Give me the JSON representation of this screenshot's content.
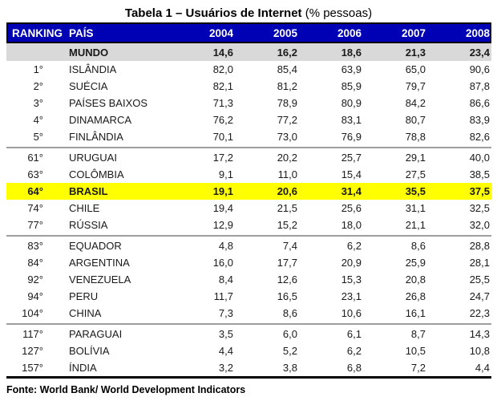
{
  "title": {
    "bold": "Tabela 1 – Usuários de Internet",
    "normal": " (% pessoas)"
  },
  "table": {
    "columns": [
      "RANKING",
      "PAÍS",
      "2004",
      "2005",
      "2006",
      "2007",
      "2008"
    ],
    "rows": [
      {
        "ranking": "",
        "country": "MUNDO",
        "values": [
          "14,6",
          "16,2",
          "18,6",
          "21,3",
          "23,4"
        ],
        "style": "world",
        "separator_before": false
      },
      {
        "ranking": "1°",
        "country": "ISLÂNDIA",
        "values": [
          "82,0",
          "85,4",
          "63,9",
          "65,0",
          "90,6"
        ],
        "style": "",
        "separator_before": false
      },
      {
        "ranking": "2°",
        "country": "SUÉCIA",
        "values": [
          "82,1",
          "81,2",
          "85,9",
          "79,7",
          "87,8"
        ],
        "style": "",
        "separator_before": false
      },
      {
        "ranking": "3°",
        "country": "PAÍSES BAIXOS",
        "values": [
          "71,3",
          "78,9",
          "80,9",
          "84,2",
          "86,6"
        ],
        "style": "",
        "separator_before": false
      },
      {
        "ranking": "4°",
        "country": "DINAMARCA",
        "values": [
          "76,2",
          "77,2",
          "83,1",
          "80,7",
          "83,9"
        ],
        "style": "",
        "separator_before": false
      },
      {
        "ranking": "5°",
        "country": "FINLÂNDIA",
        "values": [
          "70,1",
          "73,0",
          "76,9",
          "78,8",
          "82,6"
        ],
        "style": "",
        "separator_before": false
      },
      {
        "ranking": "61°",
        "country": "URUGUAI",
        "values": [
          "17,2",
          "20,2",
          "25,7",
          "29,1",
          "40,0"
        ],
        "style": "",
        "separator_before": true
      },
      {
        "ranking": "63°",
        "country": "COLÔMBIA",
        "values": [
          "9,1",
          "11,0",
          "15,4",
          "27,5",
          "38,5"
        ],
        "style": "",
        "separator_before": false
      },
      {
        "ranking": "64°",
        "country": "BRASIL",
        "values": [
          "19,1",
          "20,6",
          "31,4",
          "35,5",
          "37,5"
        ],
        "style": "highlight",
        "separator_before": false
      },
      {
        "ranking": "74°",
        "country": "CHILE",
        "values": [
          "19,4",
          "21,5",
          "25,6",
          "31,1",
          "32,5"
        ],
        "style": "",
        "separator_before": false
      },
      {
        "ranking": "77°",
        "country": "RÚSSIA",
        "values": [
          "12,9",
          "15,2",
          "18,0",
          "21,1",
          "32,0"
        ],
        "style": "",
        "separator_before": false
      },
      {
        "ranking": "83°",
        "country": "EQUADOR",
        "values": [
          "4,8",
          "7,4",
          "6,2",
          "8,6",
          "28,8"
        ],
        "style": "",
        "separator_before": true
      },
      {
        "ranking": "84°",
        "country": "ARGENTINA",
        "values": [
          "16,0",
          "17,7",
          "20,9",
          "25,9",
          "28,1"
        ],
        "style": "",
        "separator_before": false
      },
      {
        "ranking": "92°",
        "country": "VENEZUELA",
        "values": [
          "8,4",
          "12,6",
          "15,3",
          "20,8",
          "25,5"
        ],
        "style": "",
        "separator_before": false
      },
      {
        "ranking": "94°",
        "country": "PERU",
        "values": [
          "11,7",
          "16,5",
          "23,1",
          "26,8",
          "24,7"
        ],
        "style": "",
        "separator_before": false
      },
      {
        "ranking": "104°",
        "country": "CHINA",
        "values": [
          "7,3",
          "8,6",
          "10,6",
          "16,1",
          "22,3"
        ],
        "style": "",
        "separator_before": false
      },
      {
        "ranking": "117°",
        "country": "PARAGUAI",
        "values": [
          "3,5",
          "6,0",
          "6,1",
          "8,7",
          "14,3"
        ],
        "style": "",
        "separator_before": true
      },
      {
        "ranking": "127°",
        "country": "BOLÍVIA",
        "values": [
          "4,4",
          "5,2",
          "6,2",
          "10,5",
          "10,8"
        ],
        "style": "",
        "separator_before": false
      },
      {
        "ranking": "157°",
        "country": "ÍNDIA",
        "values": [
          "3,2",
          "3,8",
          "6,8",
          "7,2",
          "4,4"
        ],
        "style": "",
        "separator_before": false
      }
    ]
  },
  "footer": {
    "source": "Fonte: World Bank/ World Development Indicators"
  },
  "colors": {
    "header_bg": "#0000B4",
    "header_text": "#FFFFFF",
    "world_row_bg": "#D9D9D9",
    "highlight_row_bg": "#FFFF00",
    "separator_line": "#9E9E9E",
    "border": "#000000",
    "text": "#1A1A1A"
  },
  "chart_data": {
    "type": "table",
    "title": "Tabela 1 – Usuários de Internet (% pessoas)",
    "columns": [
      "RANKING",
      "PAÍS",
      "2004",
      "2005",
      "2006",
      "2007",
      "2008"
    ],
    "rows": [
      [
        "",
        "MUNDO",
        14.6,
        16.2,
        18.6,
        21.3,
        23.4
      ],
      [
        "1°",
        "ISLÂNDIA",
        82.0,
        85.4,
        63.9,
        65.0,
        90.6
      ],
      [
        "2°",
        "SUÉCIA",
        82.1,
        81.2,
        85.9,
        79.7,
        87.8
      ],
      [
        "3°",
        "PAÍSES BAIXOS",
        71.3,
        78.9,
        80.9,
        84.2,
        86.6
      ],
      [
        "4°",
        "DINAMARCA",
        76.2,
        77.2,
        83.1,
        80.7,
        83.9
      ],
      [
        "5°",
        "FINLÂNDIA",
        70.1,
        73.0,
        76.9,
        78.8,
        82.6
      ],
      [
        "61°",
        "URUGUAI",
        17.2,
        20.2,
        25.7,
        29.1,
        40.0
      ],
      [
        "63°",
        "COLÔMBIA",
        9.1,
        11.0,
        15.4,
        27.5,
        38.5
      ],
      [
        "64°",
        "BRASIL",
        19.1,
        20.6,
        31.4,
        35.5,
        37.5
      ],
      [
        "74°",
        "CHILE",
        19.4,
        21.5,
        25.6,
        31.1,
        32.5
      ],
      [
        "77°",
        "RÚSSIA",
        12.9,
        15.2,
        18.0,
        21.1,
        32.0
      ],
      [
        "83°",
        "EQUADOR",
        4.8,
        7.4,
        6.2,
        8.6,
        28.8
      ],
      [
        "84°",
        "ARGENTINA",
        16.0,
        17.7,
        20.9,
        25.9,
        28.1
      ],
      [
        "92°",
        "VENEZUELA",
        8.4,
        12.6,
        15.3,
        20.8,
        25.5
      ],
      [
        "94°",
        "PERU",
        11.7,
        16.5,
        23.1,
        26.8,
        24.7
      ],
      [
        "104°",
        "CHINA",
        7.3,
        8.6,
        10.6,
        16.1,
        22.3
      ],
      [
        "117°",
        "PARAGUAI",
        3.5,
        6.0,
        6.1,
        8.7,
        14.3
      ],
      [
        "127°",
        "BOLÍVIA",
        4.4,
        5.2,
        6.2,
        10.5,
        10.8
      ],
      [
        "157°",
        "ÍNDIA",
        3.2,
        3.8,
        6.8,
        7.2,
        4.4
      ]
    ],
    "highlighted_row": "BRASIL",
    "source": "Fonte: World Bank/ World Development Indicators",
    "value_unit": "% pessoas"
  }
}
